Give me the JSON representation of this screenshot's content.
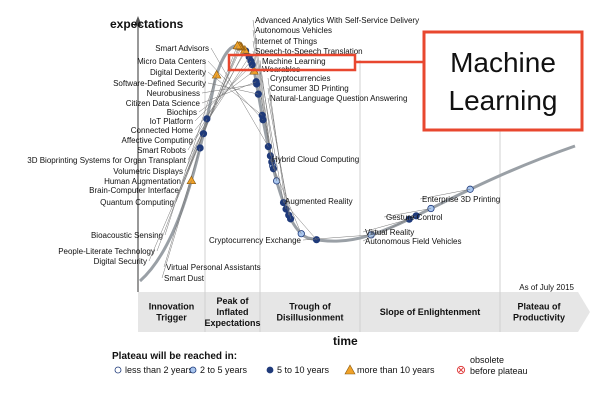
{
  "chart_data": {
    "type": "scatter",
    "ylabel": "expectations",
    "xlabel": "time",
    "note": "As of July 2015",
    "phases": [
      "Innovation Trigger",
      "Peak of Inflated Expectations",
      "Trough of Disillusionment",
      "Slope of Enlightenment",
      "Plateau of Productivity"
    ],
    "legend": {
      "title": "Plateau will be reached in:",
      "items": [
        {
          "key": "lt2",
          "label": "less than 2 years"
        },
        {
          "key": "2to5",
          "label": "2 to 5 years"
        },
        {
          "key": "5to10",
          "label": "5 to 10 years"
        },
        {
          "key": "gt10",
          "label": "more than 10 years"
        },
        {
          "key": "obsolete",
          "label": "obsolete before plateau"
        }
      ]
    },
    "callout": "Machine Learning",
    "colors": {
      "curve": "#9aa0a6",
      "dot_5to10": "#1f3a7a",
      "dot_2to5": "#a9c6ee",
      "dot_gt10": "#f0a229",
      "obsolete": "#e04040",
      "highlight": "#e8472f",
      "band": "#e6e6e6"
    },
    "technologies": [
      {
        "name": "Advanced Analytics With Self-Service Delivery",
        "t": 0.305,
        "category": "2to5"
      },
      {
        "name": "Autonomous Vehicles",
        "t": 0.303,
        "category": "5to10"
      },
      {
        "name": "Internet of Things",
        "t": 0.3,
        "category": "5to10"
      },
      {
        "name": "Speech-to-Speech Translation",
        "t": 0.307,
        "category": "5to10"
      },
      {
        "name": "Smart Advisors",
        "t": 0.295,
        "category": "5to10"
      },
      {
        "name": "Machine Learning",
        "t": 0.314,
        "category": "2to5"
      },
      {
        "name": "Wearables",
        "t": 0.33,
        "category": "5to10"
      },
      {
        "name": "Cryptocurrencies",
        "t": 0.336,
        "category": "5to10"
      },
      {
        "name": "Consumer 3D Printing",
        "t": 0.342,
        "category": "5to10"
      },
      {
        "name": "Natural-Language Question Answering",
        "t": 0.346,
        "category": "5to10"
      },
      {
        "name": "Micro Data Centers",
        "t": 0.283,
        "category": "5to10"
      },
      {
        "name": "Digital Dexterity",
        "t": 0.281,
        "category": "5to10"
      },
      {
        "name": "Software-Defined Security",
        "t": 0.272,
        "category": "5to10"
      },
      {
        "name": "Neurobusiness",
        "t": 0.268,
        "category": "5to10"
      },
      {
        "name": "Citizen Data Science",
        "t": 0.267,
        "category": "5to10"
      },
      {
        "name": "Biochips",
        "t": 0.262,
        "category": "gt10"
      },
      {
        "name": "IoT Platform",
        "t": 0.258,
        "category": "5to10"
      },
      {
        "name": "Connected Home",
        "t": 0.255,
        "category": "5to10"
      },
      {
        "name": "Affective Computing",
        "t": 0.251,
        "category": "5to10"
      },
      {
        "name": "Smart Robots",
        "t": 0.243,
        "category": "5to10"
      },
      {
        "name": "3D Bioprinting Systems for Organ Transplant",
        "t": 0.241,
        "category": "gt10"
      },
      {
        "name": "Volumetric Displays",
        "t": 0.233,
        "category": "gt10"
      },
      {
        "name": "Human Augmentation",
        "t": 0.23,
        "category": "gt10"
      },
      {
        "name": "Brain-Computer Interface",
        "t": 0.228,
        "category": "gt10"
      },
      {
        "name": "Quantum Computing",
        "t": 0.224,
        "category": "gt10"
      },
      {
        "name": "Bioacoustic Sensing",
        "t": 0.176,
        "category": "gt10"
      },
      {
        "name": "People-Literate Technology",
        "t": 0.154,
        "category": "5to10"
      },
      {
        "name": "Digital Security",
        "t": 0.146,
        "category": "5to10"
      },
      {
        "name": "Virtual Personal Assistants",
        "t": 0.138,
        "category": "5to10"
      },
      {
        "name": "Smart Dust",
        "t": 0.118,
        "category": "gt10"
      },
      {
        "name": "Hybrid Cloud Computing",
        "t": 0.371,
        "category": "2to5"
      },
      {
        "name": "Augmented Reality",
        "t": 0.405,
        "category": "5to10"
      },
      {
        "name": "Cryptocurrency Exchange",
        "t": 0.532,
        "category": "2to5"
      },
      {
        "name": "Virtual Reality",
        "t": 0.62,
        "category": "5to10"
      },
      {
        "name": "Autonomous Field Vehicles",
        "t": 0.634,
        "category": "5to10"
      },
      {
        "name": "Gesture Control",
        "t": 0.67,
        "category": "2to5"
      },
      {
        "name": "Enterprise 3D Printing",
        "t": 0.76,
        "category": "2to5"
      }
    ]
  }
}
